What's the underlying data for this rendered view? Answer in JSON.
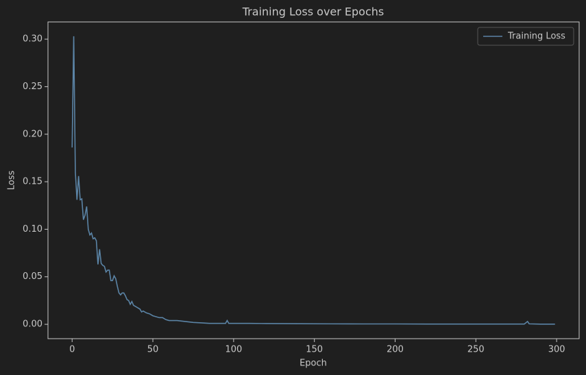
{
  "chart_data": {
    "type": "line",
    "title": "Training Loss over Epochs",
    "x_label": "Epoch",
    "y_label": "Loss",
    "x": [
      0,
      1,
      2,
      3,
      4,
      5,
      6,
      7,
      8,
      9,
      10,
      11,
      12,
      13,
      14,
      15,
      16,
      17,
      18,
      19,
      20,
      21,
      22,
      23,
      24,
      25,
      26,
      27,
      28,
      29,
      30,
      31,
      32,
      33,
      34,
      35,
      36,
      37,
      38,
      39,
      40,
      42,
      43,
      44,
      46,
      48,
      50,
      52,
      54,
      56,
      58,
      60,
      65,
      70,
      75,
      80,
      85,
      90,
      95,
      96,
      97,
      100,
      110,
      120,
      140,
      160,
      180,
      200,
      220,
      240,
      260,
      280,
      282,
      283,
      290,
      299
    ],
    "series": [
      {
        "name": "Training Loss",
        "color": "#5b84a6",
        "values": [
          0.186,
          0.303,
          0.16,
          0.131,
          0.156,
          0.131,
          0.132,
          0.11,
          0.115,
          0.124,
          0.1,
          0.094,
          0.096,
          0.09,
          0.091,
          0.088,
          0.063,
          0.079,
          0.064,
          0.062,
          0.061,
          0.055,
          0.057,
          0.057,
          0.046,
          0.046,
          0.051,
          0.048,
          0.04,
          0.033,
          0.031,
          0.033,
          0.033,
          0.03,
          0.026,
          0.025,
          0.021,
          0.024,
          0.02,
          0.019,
          0.018,
          0.016,
          0.013,
          0.014,
          0.012,
          0.011,
          0.009,
          0.008,
          0.007,
          0.007,
          0.005,
          0.004,
          0.004,
          0.003,
          0.002,
          0.0015,
          0.001,
          0.001,
          0.001,
          0.004,
          0.001,
          0.001,
          0.001,
          0.0008,
          0.0006,
          0.0005,
          0.0004,
          0.0004,
          0.0003,
          0.0003,
          0.0003,
          0.0003,
          0.003,
          0.0005,
          0.0002,
          0.0002
        ]
      }
    ],
    "xlim": [
      -14.95,
      313.95
    ],
    "xticks": [
      0,
      50,
      100,
      150,
      200,
      250,
      300
    ],
    "ylim": [
      -0.0151,
      0.3181
    ],
    "yticks": [
      {
        "value": 0,
        "label": "0.00"
      },
      {
        "value": 0.05,
        "label": "0.05"
      },
      {
        "value": 0.1,
        "label": "0.10"
      },
      {
        "value": 0.15,
        "label": "0.15"
      },
      {
        "value": 0.2,
        "label": "0.20"
      },
      {
        "value": 0.25,
        "label": "0.25"
      },
      {
        "value": 0.3,
        "label": "0.30"
      }
    ],
    "legend": "upper right",
    "grid": false
  }
}
